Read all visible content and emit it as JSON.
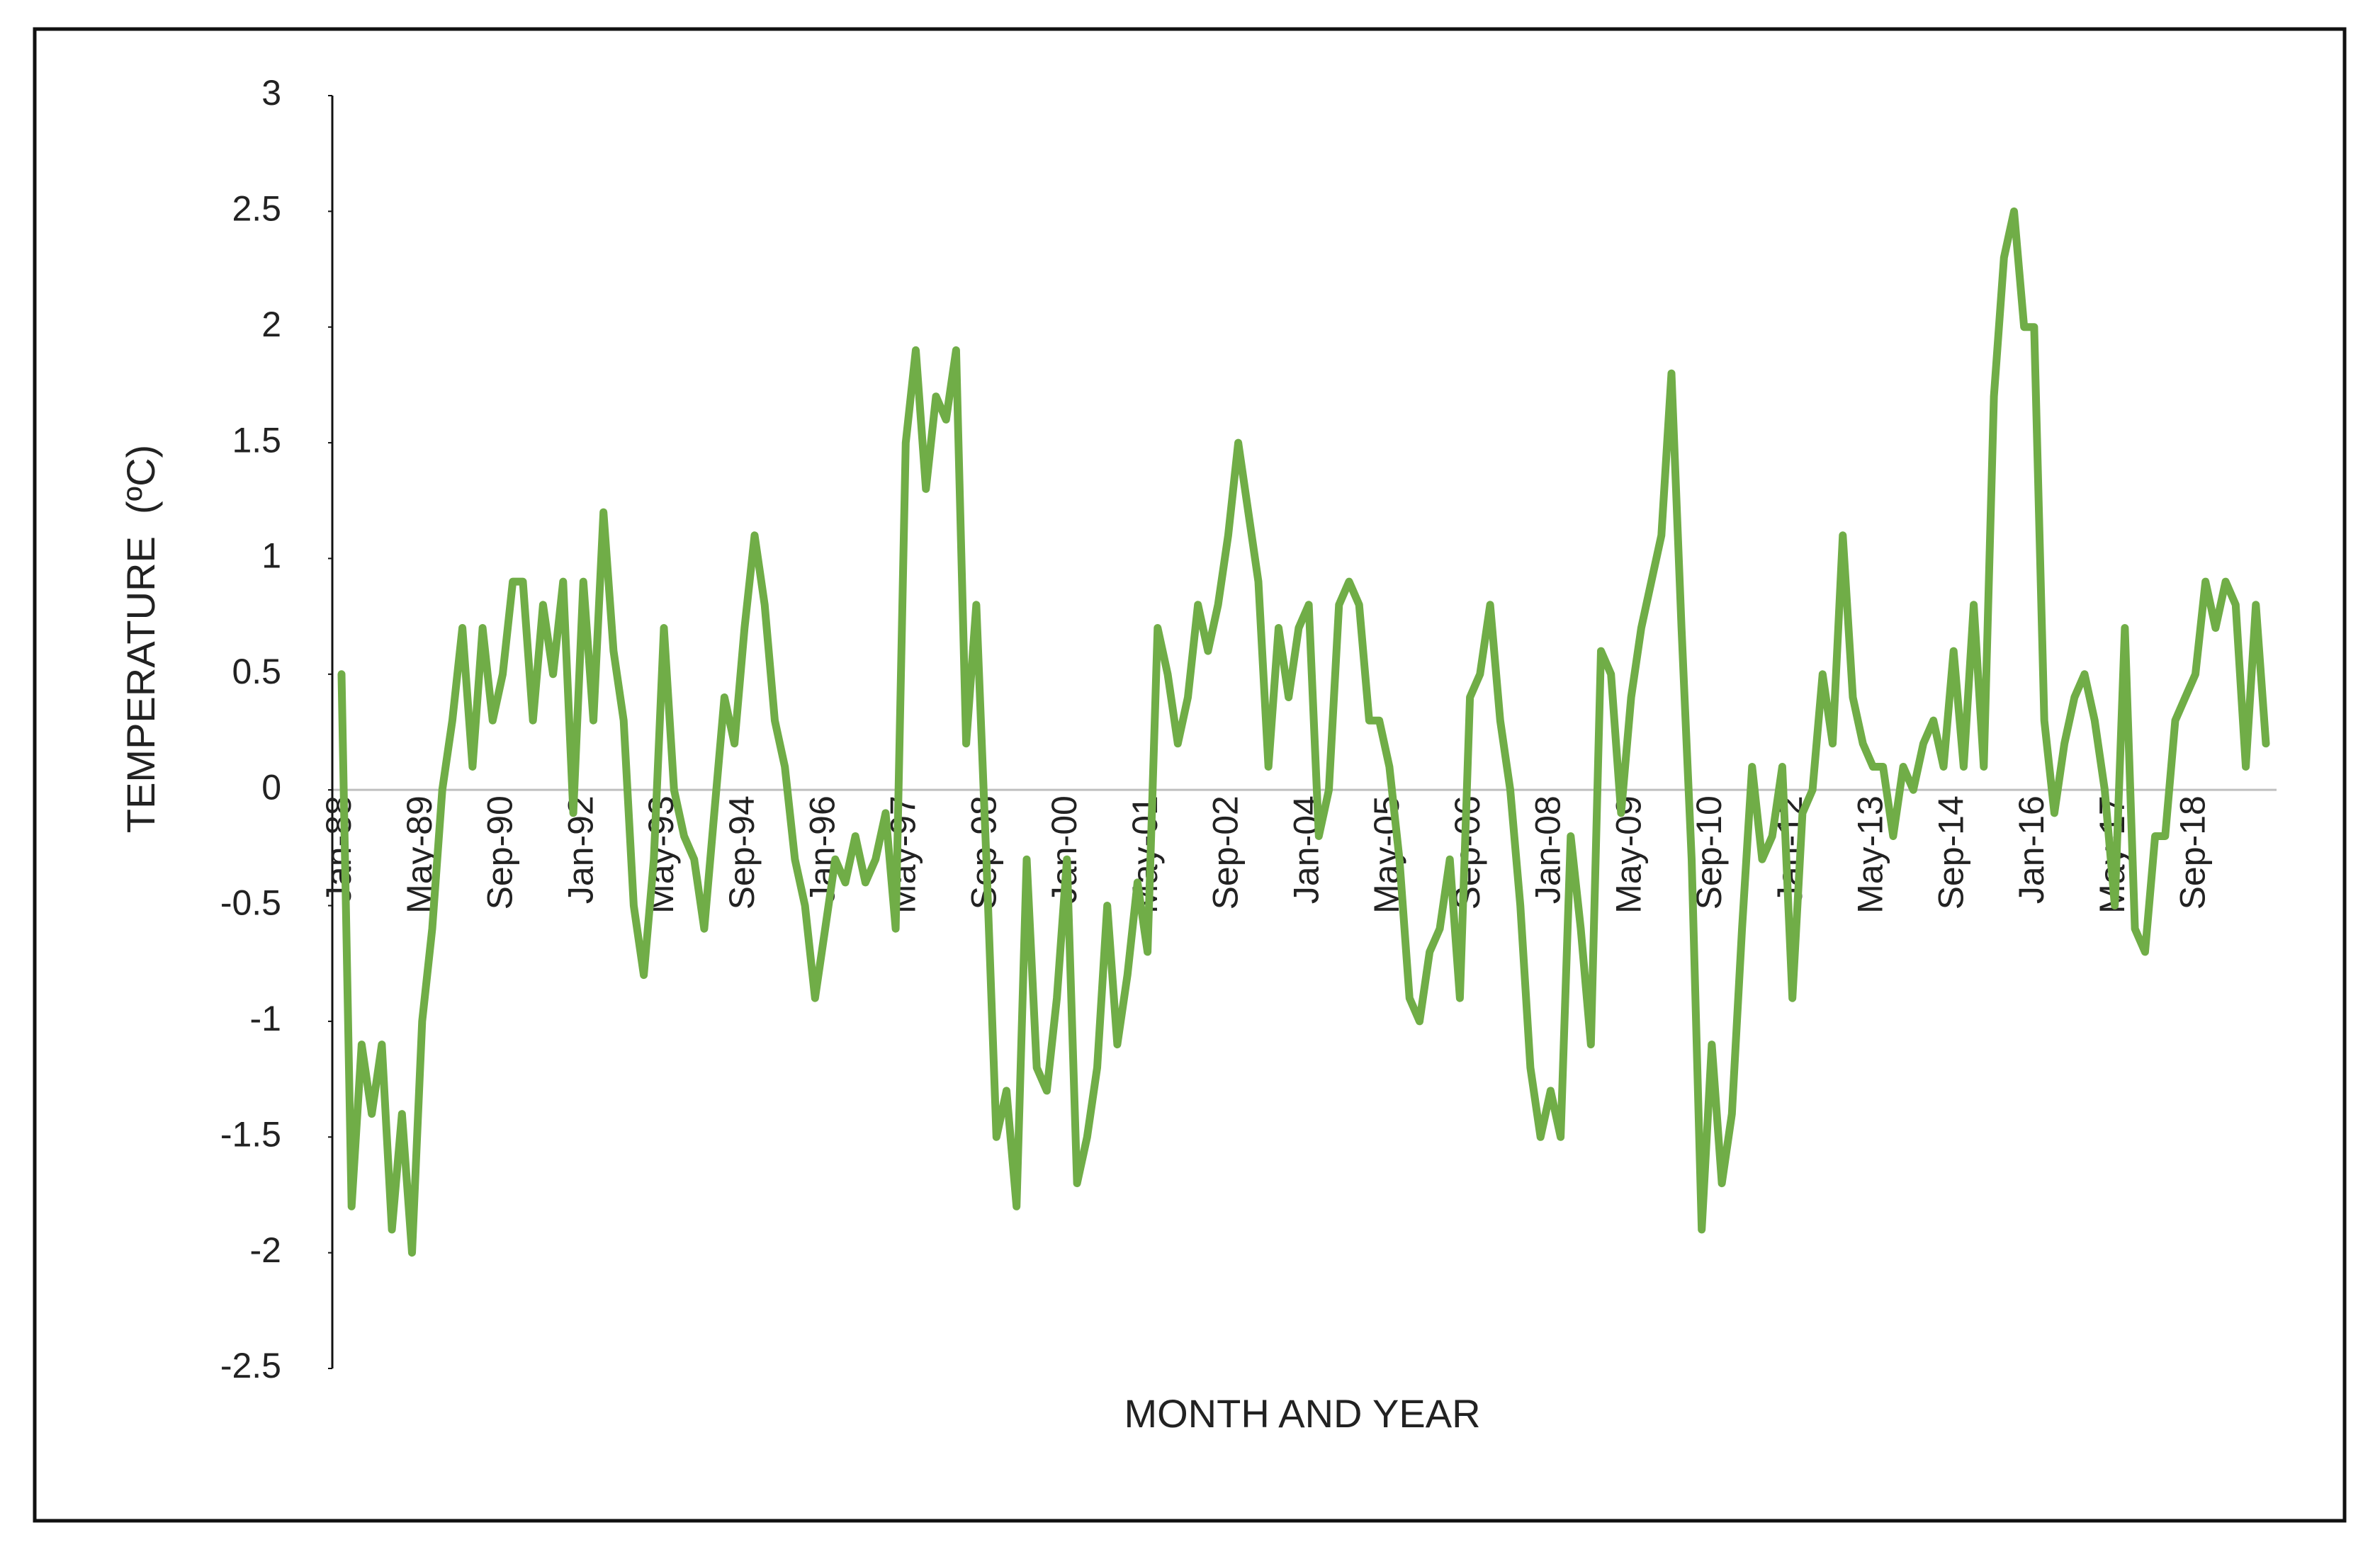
{
  "chart_data": {
    "type": "line",
    "x_label": "MONTH AND YEAR",
    "y_label": "TEMPERATURE  (ºC)",
    "ylim": [
      -2.5,
      3
    ],
    "yticks": [
      3,
      2.5,
      2,
      1.5,
      1,
      0.5,
      0,
      -0.5,
      -1,
      -1.5,
      -2,
      -2.5
    ],
    "categories": [
      "Jan-88",
      null,
      null,
      null,
      null,
      null,
      null,
      null,
      "May-89",
      null,
      null,
      null,
      null,
      null,
      null,
      null,
      "Sep-90",
      null,
      null,
      null,
      null,
      null,
      null,
      null,
      "Jan-92",
      null,
      null,
      null,
      null,
      null,
      null,
      null,
      "May-93",
      null,
      null,
      null,
      null,
      null,
      null,
      null,
      "Sep-94",
      null,
      null,
      null,
      null,
      null,
      null,
      null,
      "Jan-96",
      null,
      null,
      null,
      null,
      null,
      null,
      null,
      "May-97",
      null,
      null,
      null,
      null,
      null,
      null,
      null,
      "Sep-98",
      null,
      null,
      null,
      null,
      null,
      null,
      null,
      "Jan-00",
      null,
      null,
      null,
      null,
      null,
      null,
      null,
      "May-01",
      null,
      null,
      null,
      null,
      null,
      null,
      null,
      "Sep-02",
      null,
      null,
      null,
      null,
      null,
      null,
      null,
      "Jan-04",
      null,
      null,
      null,
      null,
      null,
      null,
      null,
      "May-05",
      null,
      null,
      null,
      null,
      null,
      null,
      null,
      "Sep-06",
      null,
      null,
      null,
      null,
      null,
      null,
      null,
      "Jan-08",
      null,
      null,
      null,
      null,
      null,
      null,
      null,
      "May-09",
      null,
      null,
      null,
      null,
      null,
      null,
      null,
      "Sep-10",
      null,
      null,
      null,
      null,
      null,
      null,
      null,
      "Jan-12",
      null,
      null,
      null,
      null,
      null,
      null,
      null,
      "May-13",
      null,
      null,
      null,
      null,
      null,
      null,
      null,
      "Sep-14",
      null,
      null,
      null,
      null,
      null,
      null,
      null,
      "Jan-16",
      null,
      null,
      null,
      null,
      null,
      null,
      null,
      "May-17",
      null,
      null,
      null,
      null,
      null,
      null,
      null,
      "Sep-18",
      null,
      null,
      null,
      null,
      null,
      null,
      null
    ],
    "color": "#70ad47",
    "values": [
      0.5,
      -1.8,
      -1.1,
      -1.4,
      -1.1,
      -1.9,
      -1.4,
      -2.0,
      -1.0,
      -0.6,
      0.0,
      0.3,
      0.7,
      0.1,
      0.7,
      0.3,
      0.5,
      0.9,
      0.9,
      0.3,
      0.8,
      0.5,
      0.9,
      -0.1,
      0.9,
      0.3,
      1.2,
      0.6,
      0.3,
      -0.5,
      -0.8,
      -0.3,
      0.7,
      0.0,
      -0.2,
      -0.3,
      -0.6,
      -0.1,
      0.4,
      0.2,
      0.7,
      1.1,
      0.8,
      0.3,
      0.1,
      -0.3,
      -0.5,
      -0.9,
      -0.6,
      -0.3,
      -0.4,
      -0.2,
      -0.4,
      -0.3,
      -0.1,
      -0.6,
      1.5,
      1.9,
      1.3,
      1.7,
      1.6,
      1.9,
      0.2,
      0.8,
      -0.3,
      -1.5,
      -1.3,
      -1.8,
      -0.3,
      -1.2,
      -1.3,
      -0.9,
      -0.3,
      -1.7,
      -1.5,
      -1.2,
      -0.5,
      -1.1,
      -0.8,
      -0.4,
      -0.7,
      0.7,
      0.5,
      0.2,
      0.4,
      0.8,
      0.6,
      0.8,
      1.1,
      1.5,
      1.2,
      0.9,
      0.1,
      0.7,
      0.4,
      0.7,
      0.8,
      -0.2,
      0.0,
      0.8,
      0.9,
      0.8,
      0.3,
      0.3,
      0.1,
      -0.3,
      -0.9,
      -1.0,
      -0.7,
      -0.6,
      -0.3,
      -0.9,
      0.4,
      0.5,
      0.8,
      0.3,
      0.0,
      -0.5,
      -1.2,
      -1.5,
      -1.3,
      -1.5,
      -0.2,
      -0.6,
      -1.1,
      0.6,
      0.5,
      -0.1,
      0.4,
      0.7,
      0.9,
      1.1,
      1.8,
      0.7,
      -0.3,
      -1.9,
      -1.1,
      -1.7,
      -1.4,
      -0.6,
      0.1,
      -0.3,
      -0.2,
      0.1,
      -0.9,
      -0.1,
      0.0,
      0.5,
      0.2,
      1.1,
      0.4,
      0.2,
      0.1,
      0.1,
      -0.2,
      0.1,
      0.0,
      0.2,
      0.3,
      0.1,
      0.6,
      0.1,
      0.8,
      0.1,
      1.7,
      2.3,
      2.5,
      2.0,
      2.0,
      0.3,
      -0.1,
      0.2,
      0.4,
      0.5,
      0.3,
      0.0,
      -0.5,
      0.7,
      -0.6,
      -0.7,
      -0.2,
      -0.2,
      0.3,
      0.4,
      0.5,
      0.9,
      0.7,
      0.9,
      0.8,
      0.1,
      0.8,
      0.2
    ]
  }
}
